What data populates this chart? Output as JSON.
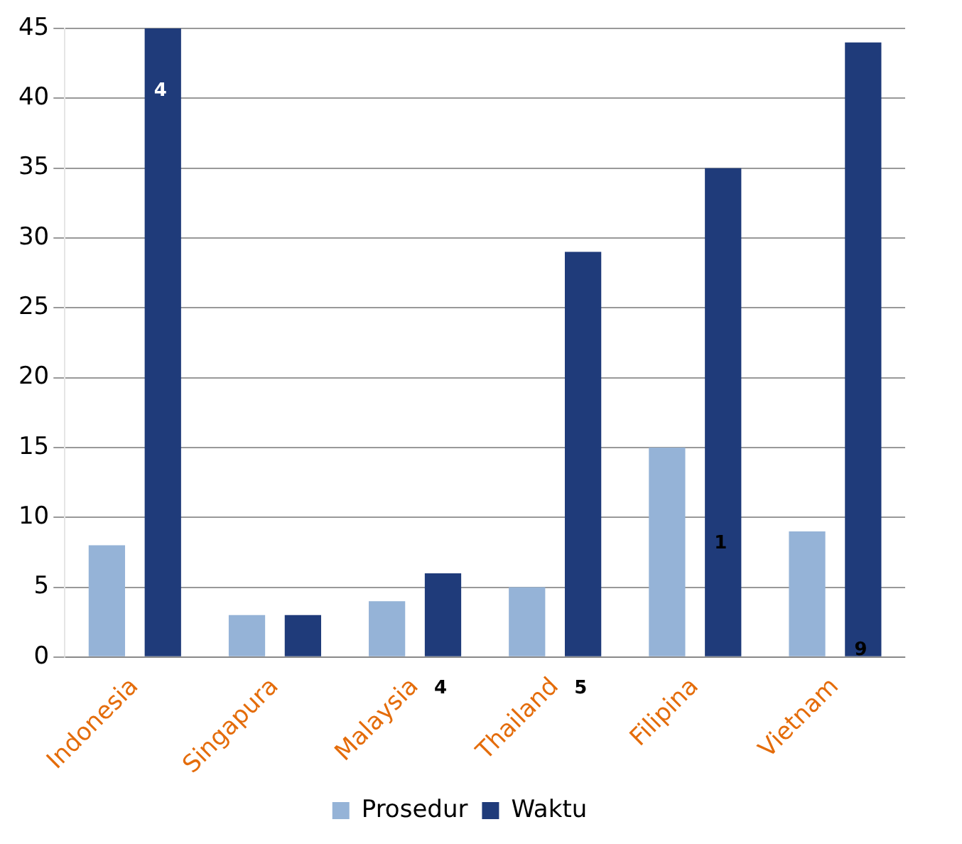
{
  "chart_data": {
    "type": "bar",
    "categories": [
      "Indonesia",
      "Singapura",
      "Malaysia",
      "Thailand",
      "Filipina",
      "Vietnam"
    ],
    "series": [
      {
        "name": "Prosedur",
        "color": "#95b3d7",
        "values": [
          8,
          3,
          4,
          5,
          15,
          9
        ]
      },
      {
        "name": "Waktu",
        "color": "#1f3b7a",
        "values": [
          45,
          3,
          6,
          29,
          35,
          44
        ]
      }
    ],
    "ylim": [
      0,
      45
    ],
    "yticks": [
      0,
      5,
      10,
      15,
      20,
      25,
      30,
      35,
      40,
      45
    ],
    "grid": "y",
    "legend": "bottom",
    "annotations": [
      "4",
      "4",
      "5",
      "1",
      {
        "text": "9",
        "x": "Vietnam",
        "y": 0.5
      }
    ]
  }
}
